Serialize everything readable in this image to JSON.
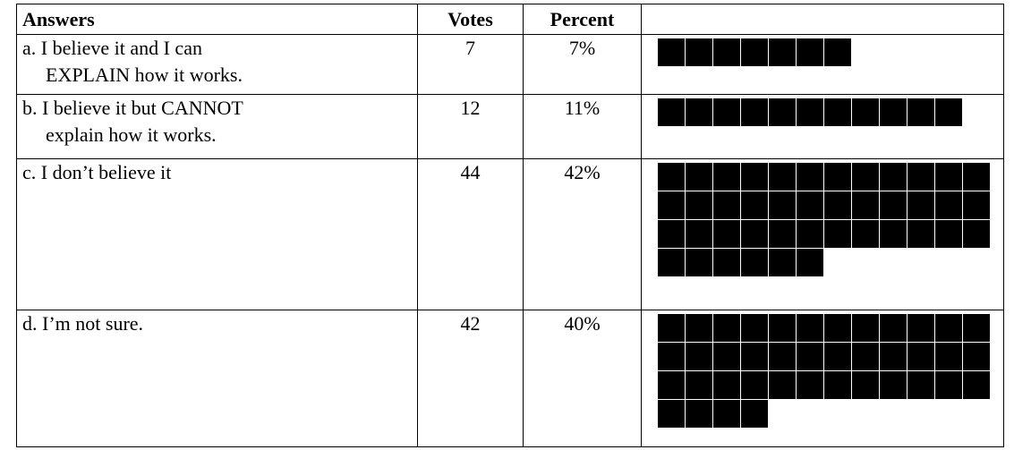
{
  "table": {
    "headers": [
      "Answers",
      "Votes",
      "Percent"
    ],
    "rows": [
      {
        "answer": [
          "a.  I believe it and I can",
          "EXPLAIN how it works."
        ],
        "votes": "7",
        "percent": 7,
        "percent_label": "7%"
      },
      {
        "answer": [
          "b.  I believe it but CANNOT",
          "explain how it works."
        ],
        "votes": "12",
        "percent": 11,
        "percent_label": "11%"
      },
      {
        "answer": [
          "c.  I don’t believe it"
        ],
        "votes": "44",
        "percent": 42,
        "percent_label": "42%"
      },
      {
        "answer": [
          "d.  I’m not sure."
        ],
        "votes": "42",
        "percent": 40,
        "percent_label": "40%"
      }
    ]
  }
}
